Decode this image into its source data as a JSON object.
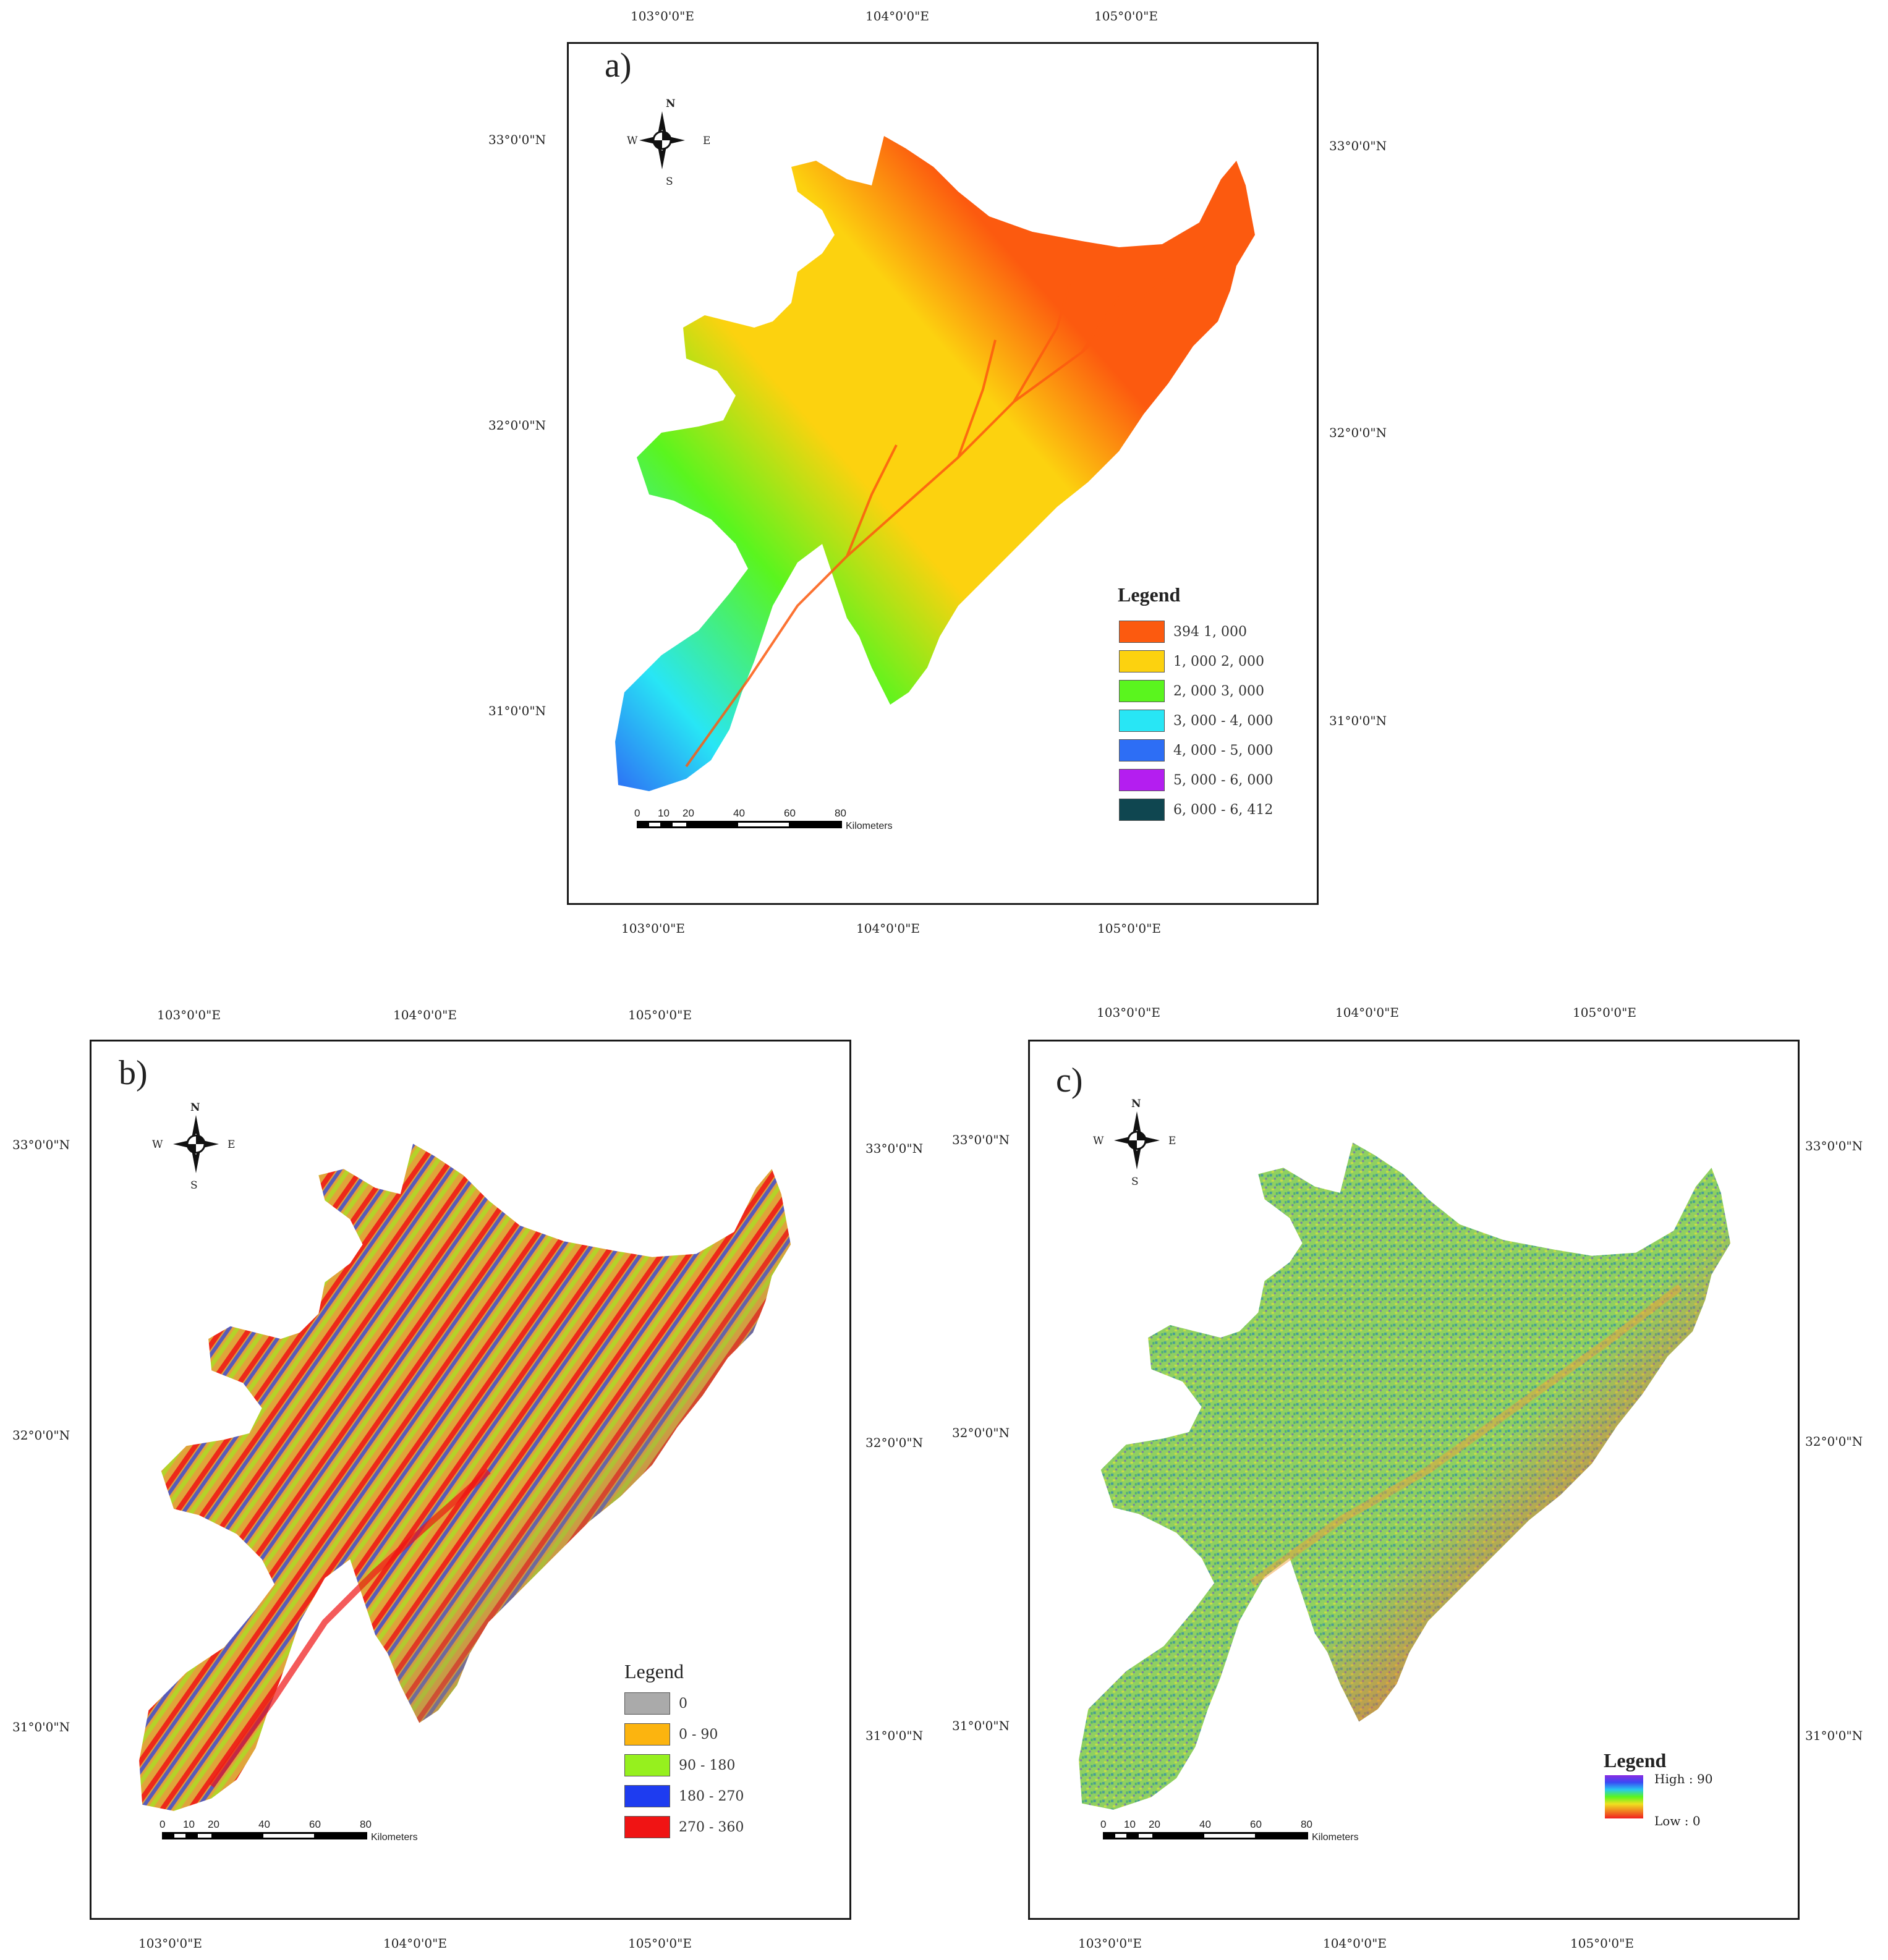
{
  "panels": {
    "a": {
      "label": "a)",
      "top_lon": [
        "103°0'0\"E",
        "104°0'0\"E",
        "105°0'0\"E"
      ],
      "bottom_lon": [
        "103°0'0\"E",
        "104°0'0\"E",
        "105°0'0\"E"
      ],
      "left_lat": [
        "33°0'0\"N",
        "32°0'0\"N",
        "31°0'0\"N"
      ],
      "right_lat": [
        "33°0'0\"N",
        "32°0'0\"N",
        "31°0'0\"N"
      ],
      "legend_title": "Legend",
      "legend": [
        {
          "label": "394    1, 000",
          "color": "#fc5a0f"
        },
        {
          "label": "1, 000    2, 000",
          "color": "#fcd20f"
        },
        {
          "label": "2, 000    3, 000",
          "color": "#5af51e"
        },
        {
          "label": "3, 000 - 4, 000",
          "color": "#28e6f5"
        },
        {
          "label": "4, 000 - 5, 000",
          "color": "#2d6ef5"
        },
        {
          "label": "5, 000 - 6, 000",
          "color": "#b41ef0"
        },
        {
          "label": "6, 000 - 6, 412",
          "color": "#0f4650"
        }
      ]
    },
    "b": {
      "label": "b)",
      "top_lon": [
        "103°0'0\"E",
        "104°0'0\"E",
        "105°0'0\"E"
      ],
      "bottom_lon": [
        "103°0'0\"E",
        "104°0'0\"E",
        "105°0'0\"E"
      ],
      "left_lat": [
        "33°0'0\"N",
        "32°0'0\"N",
        "31°0'0\"N"
      ],
      "right_lat": [
        "33°0'0\"N",
        "32°0'0\"N",
        "31°0'0\"N"
      ],
      "legend_title": "Legend",
      "legend": [
        {
          "label": "0",
          "color": "#aaaaaa"
        },
        {
          "label": "0 - 90",
          "color": "#fcb40f"
        },
        {
          "label": "90 - 180",
          "color": "#96f01e"
        },
        {
          "label": "180 - 270",
          "color": "#1e3cf0"
        },
        {
          "label": "270 - 360",
          "color": "#f01414"
        }
      ]
    },
    "c": {
      "label": "c)",
      "top_lon": [
        "103°0'0\"E",
        "104°0'0\"E",
        "105°0'0\"E"
      ],
      "bottom_lon": [
        "103°0'0\"E",
        "104°0'0\"E",
        "105°0'0\"E"
      ],
      "left_lat": [
        "33°0'0\"N",
        "32°0'0\"N",
        "31°0'0\"N"
      ],
      "right_lat": [
        "33°0'0\"N",
        "32°0'0\"N",
        "31°0'0\"N"
      ],
      "legend_title": "Legend",
      "legend_high": "High : 90",
      "legend_low": "Low : 0"
    }
  },
  "compass": {
    "n": "N",
    "s": "S",
    "e": "E",
    "w": "W"
  },
  "scale_bar": {
    "ticks": [
      "0",
      "10",
      "20",
      "40",
      "60",
      "80"
    ],
    "unit": "Kilometers"
  },
  "colors": {
    "elev_low": "#fc5a0f",
    "elev_mid": "#fcd20f",
    "elev_green": "#5af51e",
    "elev_cyan": "#28e6f5",
    "elev_blue": "#2d6ef5",
    "aspect_base": "#d8a23a",
    "aspect_flat": "#a08a5a",
    "slope_base": "#8fd060",
    "slope_low": "#f0683a"
  }
}
